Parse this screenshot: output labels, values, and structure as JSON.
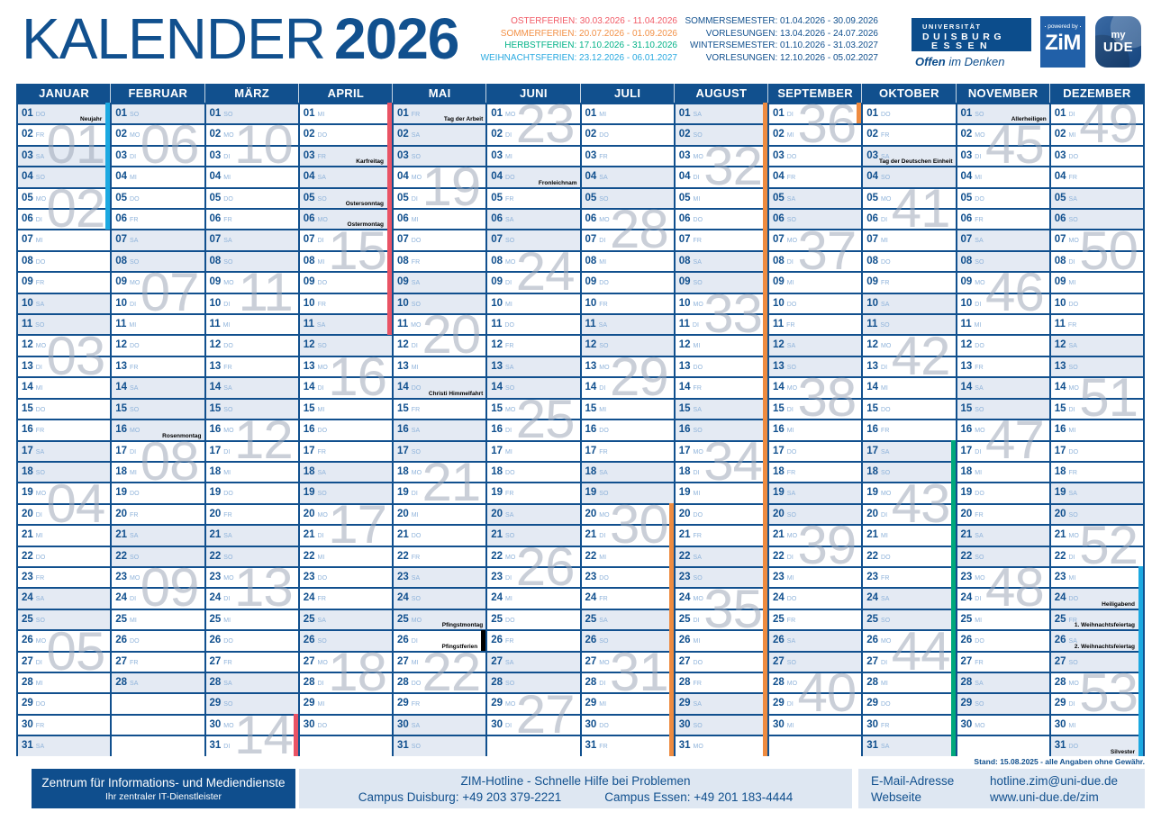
{
  "title": {
    "word": "KALENDER",
    "year": "2026"
  },
  "legend": {
    "ferien": [
      {
        "text": "OSTERFERIEN: 30.03.2026 - 11.04.2026",
        "color": "#F15A66"
      },
      {
        "text": "SOMMERFERIEN: 20.07.2026 - 01.09.2026",
        "color": "#F29147"
      },
      {
        "text": "HERBSTFERIEN: 17.10.2026 - 31.10.2026",
        "color": "#00B287"
      },
      {
        "text": "WEIHNACHTSFERIEN: 23.12.2026 - 06.01.2027",
        "color": "#29A9E0"
      }
    ],
    "semester": [
      "SOMMERSEMESTER: 01.04.2026 - 30.09.2026",
      "VORLESUNGEN: 13.04.2026 - 24.07.2026",
      "WINTERSEMESTER: 01.10.2026 - 31.03.2027",
      "VORLESUNGEN: 12.10.2026 - 05.02.2027"
    ]
  },
  "logos": {
    "ude": {
      "line1": "UNIVERSITÄT",
      "line2": "DUISBURG",
      "line3": "ESSEN",
      "tagline_bold": "Offen",
      "tagline_rest": " im Denken"
    },
    "zim": {
      "powered": "powered by",
      "word": "ZiM"
    },
    "myude": {
      "line1": "my",
      "line2": "UDE"
    }
  },
  "weekdays": [
    "MO",
    "DI",
    "MI",
    "DO",
    "FR",
    "SA",
    "SO"
  ],
  "colors": {
    "primary_blue": "#11508E",
    "weekday_blue": "#8FB3DA",
    "weekend_bg": "#E4EAF3",
    "week_number_gray": "#9EA8B8",
    "footer_band": "#DEE7F2",
    "oster_red": "#E95365",
    "sommer_orange": "#EE8B40",
    "herbst_green": "#00A87B",
    "weihnachts_cyan": "#1CA9E1",
    "pfingst_black": "#000000"
  },
  "months": [
    {
      "name": "JANUAR",
      "len": 31,
      "start": 3,
      "holidays": [
        {
          "day": 1,
          "label": "Neujahr",
          "gray": true
        }
      ],
      "bars": [
        {
          "from": 1,
          "to": 6,
          "color": "#1CA9E1"
        }
      ],
      "weeks": [
        [
          "01",
          2
        ],
        [
          "02",
          5
        ],
        [
          "03",
          12
        ],
        [
          "04",
          19
        ],
        [
          "05",
          26
        ]
      ]
    },
    {
      "name": "FEBRUAR",
      "len": 28,
      "start": 6,
      "holidays": [
        {
          "day": 16,
          "label": "Rosenmontag",
          "gray": true
        }
      ],
      "bars": [],
      "weeks": [
        [
          "06",
          2
        ],
        [
          "07",
          9
        ],
        [
          "08",
          17
        ],
        [
          "09",
          23
        ]
      ]
    },
    {
      "name": "MÄRZ",
      "len": 31,
      "start": 6,
      "holidays": [],
      "bars": [
        {
          "from": 30,
          "to": 31,
          "color": "#E95365"
        }
      ],
      "weeks": [
        [
          "10",
          2
        ],
        [
          "11",
          9
        ],
        [
          "12",
          16
        ],
        [
          "13",
          23
        ],
        [
          "14",
          30
        ]
      ]
    },
    {
      "name": "APRIL",
      "len": 30,
      "start": 2,
      "holidays": [
        {
          "day": 3,
          "label": "Karfreitag",
          "gray": true
        },
        {
          "day": 5,
          "label": "Ostersonntag",
          "gray": true
        },
        {
          "day": 6,
          "label": "Ostermontag",
          "gray": true
        }
      ],
      "bars": [
        {
          "from": 1,
          "to": 11,
          "color": "#E95365"
        }
      ],
      "weeks": [
        [
          "15",
          7
        ],
        [
          "16",
          13
        ],
        [
          "17",
          20
        ],
        [
          "18",
          27
        ]
      ]
    },
    {
      "name": "MAI",
      "len": 31,
      "start": 4,
      "holidays": [
        {
          "day": 1,
          "label": "Tag der Arbeit",
          "gray": true
        },
        {
          "day": 14,
          "label": "Christi Himmelfahrt",
          "gray": true
        },
        {
          "day": 25,
          "label": "Pfingstmontag",
          "gray": true
        },
        {
          "day": 26,
          "label": "Pfingstferien",
          "gray": false
        }
      ],
      "bars": [
        {
          "from": 26,
          "to": 26,
          "color": "#000000"
        }
      ],
      "weeks": [
        [
          "19",
          4
        ],
        [
          "20",
          11
        ],
        [
          "21",
          18
        ],
        [
          "22",
          27
        ]
      ]
    },
    {
      "name": "JUNI",
      "len": 30,
      "start": 0,
      "holidays": [
        {
          "day": 4,
          "label": "Fronleichnam",
          "gray": true
        }
      ],
      "bars": [],
      "weeks": [
        [
          "23",
          1
        ],
        [
          "24",
          8
        ],
        [
          "25",
          15
        ],
        [
          "26",
          22
        ],
        [
          "27",
          29
        ]
      ]
    },
    {
      "name": "JULI",
      "len": 31,
      "start": 2,
      "holidays": [],
      "bars": [
        {
          "from": 20,
          "to": 31,
          "color": "#EE8B40"
        }
      ],
      "weeks": [
        [
          "28",
          6
        ],
        [
          "29",
          13
        ],
        [
          "30",
          20
        ],
        [
          "31",
          27
        ]
      ]
    },
    {
      "name": "AUGUST",
      "len": 31,
      "start": 5,
      "holidays": [],
      "bars": [
        {
          "from": 1,
          "to": 31,
          "color": "#EE8B40"
        }
      ],
      "weeks": [
        [
          "32",
          3
        ],
        [
          "33",
          10
        ],
        [
          "34",
          17
        ],
        [
          "35",
          24
        ]
      ]
    },
    {
      "name": "SEPTEMBER",
      "len": 30,
      "start": 1,
      "holidays": [],
      "bars": [
        {
          "from": 1,
          "to": 1,
          "color": "#EE8B40"
        }
      ],
      "weeks": [
        [
          "36",
          1
        ],
        [
          "37",
          7
        ],
        [
          "38",
          14
        ],
        [
          "39",
          21
        ],
        [
          "40",
          28
        ]
      ]
    },
    {
      "name": "OKTOBER",
      "len": 31,
      "start": 3,
      "holidays": [
        {
          "day": 3,
          "label": "Tag der Deutschen Einheit",
          "gray": true
        }
      ],
      "bars": [
        {
          "from": 17,
          "to": 31,
          "color": "#00A87B"
        }
      ],
      "weeks": [
        [
          "41",
          5
        ],
        [
          "42",
          12
        ],
        [
          "43",
          19
        ],
        [
          "44",
          26
        ]
      ]
    },
    {
      "name": "NOVEMBER",
      "len": 30,
      "start": 6,
      "holidays": [
        {
          "day": 1,
          "label": "Allerheiligen",
          "gray": true
        }
      ],
      "bars": [],
      "weeks": [
        [
          "45",
          2
        ],
        [
          "46",
          9
        ],
        [
          "47",
          16
        ],
        [
          "48",
          23
        ]
      ]
    },
    {
      "name": "DEZEMBER",
      "len": 31,
      "start": 1,
      "holidays": [
        {
          "day": 24,
          "label": "Heiligabend",
          "gray": true
        },
        {
          "day": 25,
          "label": "1. Weihnachtsfeiertag",
          "gray": true
        },
        {
          "day": 26,
          "label": "2. Weihnachtsfeiertag",
          "gray": true
        },
        {
          "day": 31,
          "label": "Silvester",
          "gray": true
        }
      ],
      "bars": [
        {
          "from": 23,
          "to": 31,
          "color": "#1CA9E1"
        }
      ],
      "weeks": [
        [
          "49",
          1
        ],
        [
          "50",
          7
        ],
        [
          "51",
          14
        ],
        [
          "52",
          21
        ],
        [
          "53",
          28
        ]
      ]
    }
  ],
  "footer": {
    "stand": "Stand: 15.08.2025 - alle Angaben ohne Gewähr.",
    "box_line1": "Zentrum für Informations- und Mediendienste",
    "box_line2": "Ihr zentraler IT-Dienstleister",
    "hotline_title": "ZIM-Hotline - Schnelle Hilfe bei Problemen",
    "campus_duisburg": "Campus Duisburg: +49 203 379-2221",
    "campus_essen": "Campus Essen: +49 201 183-4444",
    "email_label": "E-Mail-Adresse",
    "email": "hotline.zim@uni-due.de",
    "web_label": "Webseite",
    "web": "www.uni-due.de/zim"
  }
}
